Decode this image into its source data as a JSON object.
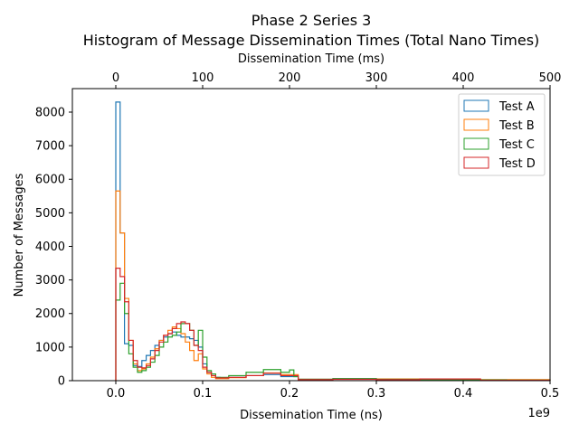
{
  "chart_data": {
    "type": "histogram",
    "title": "Phase 2 Series 3",
    "subtitle": "Histogram of Message Dissemination Times (Total Nano Times)",
    "xlabel": "Dissemination Time (ns)",
    "x_scale_note": "1e9",
    "x2label": "Dissemination Time (ms)",
    "ylabel": "Number of Messages",
    "xlim": [
      -0.05,
      0.5
    ],
    "ylim": [
      0,
      8700
    ],
    "x2lim": [
      -50,
      500
    ],
    "xticks": [
      {
        "value": 0.0,
        "label": "0.0"
      },
      {
        "value": 0.1,
        "label": "0.1"
      },
      {
        "value": 0.2,
        "label": "0.2"
      },
      {
        "value": 0.3,
        "label": "0.3"
      },
      {
        "value": 0.4,
        "label": "0.4"
      },
      {
        "value": 0.5,
        "label": "0.5"
      }
    ],
    "x2ticks": [
      {
        "value": 0,
        "label": "0"
      },
      {
        "value": 100,
        "label": "100"
      },
      {
        "value": 200,
        "label": "200"
      },
      {
        "value": 300,
        "label": "300"
      },
      {
        "value": 400,
        "label": "400"
      },
      {
        "value": 500,
        "label": "500"
      }
    ],
    "yticks": [
      {
        "value": 0,
        "label": "0"
      },
      {
        "value": 1000,
        "label": "1000"
      },
      {
        "value": 2000,
        "label": "2000"
      },
      {
        "value": 3000,
        "label": "3000"
      },
      {
        "value": 4000,
        "label": "4000"
      },
      {
        "value": 5000,
        "label": "5000"
      },
      {
        "value": 6000,
        "label": "6000"
      },
      {
        "value": 7000,
        "label": "7000"
      },
      {
        "value": 8000,
        "label": "8000"
      }
    ],
    "grid": false,
    "legend_position": "top-right",
    "bin_width": 0.005,
    "series": [
      {
        "name": "Test A",
        "color": "#1f77b4",
        "bins": [
          [
            0.0,
            0.005,
            8300
          ],
          [
            0.005,
            0.01,
            4400
          ],
          [
            0.01,
            0.015,
            1100
          ],
          [
            0.015,
            0.02,
            1050
          ],
          [
            0.02,
            0.025,
            450
          ],
          [
            0.025,
            0.03,
            420
          ],
          [
            0.03,
            0.035,
            600
          ],
          [
            0.035,
            0.04,
            750
          ],
          [
            0.04,
            0.045,
            900
          ],
          [
            0.045,
            0.05,
            1050
          ],
          [
            0.05,
            0.055,
            1200
          ],
          [
            0.055,
            0.06,
            1300
          ],
          [
            0.06,
            0.065,
            1400
          ],
          [
            0.065,
            0.07,
            1450
          ],
          [
            0.07,
            0.075,
            1350
          ],
          [
            0.075,
            0.08,
            1300
          ],
          [
            0.08,
            0.085,
            1300
          ],
          [
            0.085,
            0.09,
            1250
          ],
          [
            0.09,
            0.095,
            1200
          ],
          [
            0.095,
            0.1,
            1000
          ],
          [
            0.1,
            0.105,
            500
          ],
          [
            0.105,
            0.11,
            250
          ],
          [
            0.11,
            0.115,
            150
          ],
          [
            0.115,
            0.12,
            100
          ],
          [
            0.12,
            0.13,
            80
          ],
          [
            0.13,
            0.15,
            100
          ],
          [
            0.15,
            0.17,
            150
          ],
          [
            0.17,
            0.19,
            180
          ],
          [
            0.19,
            0.21,
            120
          ],
          [
            0.21,
            0.25,
            40
          ],
          [
            0.25,
            0.3,
            60
          ],
          [
            0.3,
            0.35,
            30
          ],
          [
            0.35,
            0.45,
            20
          ],
          [
            0.45,
            0.5,
            10
          ]
        ]
      },
      {
        "name": "Test B",
        "color": "#ff7f0e",
        "bins": [
          [
            0.0,
            0.005,
            5650
          ],
          [
            0.005,
            0.01,
            4400
          ],
          [
            0.01,
            0.015,
            2450
          ],
          [
            0.015,
            0.02,
            1200
          ],
          [
            0.02,
            0.025,
            500
          ],
          [
            0.025,
            0.03,
            300
          ],
          [
            0.03,
            0.035,
            350
          ],
          [
            0.035,
            0.04,
            500
          ],
          [
            0.04,
            0.045,
            700
          ],
          [
            0.045,
            0.05,
            950
          ],
          [
            0.05,
            0.055,
            1200
          ],
          [
            0.055,
            0.06,
            1350
          ],
          [
            0.06,
            0.065,
            1500
          ],
          [
            0.065,
            0.07,
            1600
          ],
          [
            0.07,
            0.075,
            1550
          ],
          [
            0.075,
            0.08,
            1400
          ],
          [
            0.08,
            0.085,
            1150
          ],
          [
            0.085,
            0.09,
            900
          ],
          [
            0.09,
            0.095,
            600
          ],
          [
            0.095,
            0.1,
            800
          ],
          [
            0.1,
            0.105,
            350
          ],
          [
            0.105,
            0.11,
            200
          ],
          [
            0.11,
            0.115,
            100
          ],
          [
            0.115,
            0.13,
            60
          ],
          [
            0.13,
            0.15,
            90
          ],
          [
            0.15,
            0.17,
            150
          ],
          [
            0.17,
            0.19,
            230
          ],
          [
            0.19,
            0.21,
            180
          ],
          [
            0.21,
            0.25,
            40
          ],
          [
            0.25,
            0.3,
            50
          ],
          [
            0.3,
            0.4,
            50
          ],
          [
            0.4,
            0.5,
            30
          ]
        ]
      },
      {
        "name": "Test C",
        "color": "#2ca02c",
        "bins": [
          [
            0.0,
            0.005,
            2400
          ],
          [
            0.005,
            0.01,
            2900
          ],
          [
            0.01,
            0.015,
            2000
          ],
          [
            0.015,
            0.02,
            800
          ],
          [
            0.02,
            0.025,
            400
          ],
          [
            0.025,
            0.03,
            250
          ],
          [
            0.03,
            0.035,
            300
          ],
          [
            0.035,
            0.04,
            400
          ],
          [
            0.04,
            0.045,
            550
          ],
          [
            0.045,
            0.05,
            750
          ],
          [
            0.05,
            0.055,
            1000
          ],
          [
            0.055,
            0.06,
            1150
          ],
          [
            0.06,
            0.065,
            1300
          ],
          [
            0.065,
            0.07,
            1350
          ],
          [
            0.07,
            0.075,
            1450
          ],
          [
            0.075,
            0.08,
            1700
          ],
          [
            0.08,
            0.085,
            1700
          ],
          [
            0.085,
            0.09,
            1500
          ],
          [
            0.09,
            0.095,
            1050
          ],
          [
            0.095,
            0.1,
            1500
          ],
          [
            0.1,
            0.105,
            700
          ],
          [
            0.105,
            0.11,
            300
          ],
          [
            0.11,
            0.115,
            200
          ],
          [
            0.115,
            0.13,
            100
          ],
          [
            0.13,
            0.15,
            150
          ],
          [
            0.15,
            0.17,
            250
          ],
          [
            0.17,
            0.19,
            330
          ],
          [
            0.19,
            0.2,
            250
          ],
          [
            0.2,
            0.205,
            320
          ],
          [
            0.205,
            0.21,
            120
          ],
          [
            0.21,
            0.25,
            40
          ],
          [
            0.25,
            0.3,
            60
          ],
          [
            0.3,
            0.35,
            40
          ],
          [
            0.35,
            0.45,
            20
          ],
          [
            0.45,
            0.5,
            15
          ]
        ]
      },
      {
        "name": "Test D",
        "color": "#d62728",
        "bins": [
          [
            0.0,
            0.005,
            3350
          ],
          [
            0.005,
            0.01,
            3100
          ],
          [
            0.01,
            0.015,
            2350
          ],
          [
            0.015,
            0.02,
            1200
          ],
          [
            0.02,
            0.025,
            600
          ],
          [
            0.025,
            0.03,
            400
          ],
          [
            0.03,
            0.035,
            380
          ],
          [
            0.035,
            0.04,
            450
          ],
          [
            0.04,
            0.045,
            650
          ],
          [
            0.045,
            0.05,
            900
          ],
          [
            0.05,
            0.055,
            1150
          ],
          [
            0.055,
            0.06,
            1350
          ],
          [
            0.06,
            0.065,
            1400
          ],
          [
            0.065,
            0.07,
            1550
          ],
          [
            0.07,
            0.075,
            1700
          ],
          [
            0.075,
            0.08,
            1750
          ],
          [
            0.08,
            0.085,
            1700
          ],
          [
            0.085,
            0.09,
            1500
          ],
          [
            0.09,
            0.095,
            1050
          ],
          [
            0.095,
            0.1,
            900
          ],
          [
            0.1,
            0.105,
            400
          ],
          [
            0.105,
            0.11,
            250
          ],
          [
            0.11,
            0.115,
            150
          ],
          [
            0.115,
            0.13,
            80
          ],
          [
            0.13,
            0.15,
            100
          ],
          [
            0.15,
            0.17,
            150
          ],
          [
            0.17,
            0.19,
            220
          ],
          [
            0.19,
            0.21,
            150
          ],
          [
            0.21,
            0.25,
            30
          ],
          [
            0.25,
            0.3,
            40
          ],
          [
            0.3,
            0.35,
            30
          ],
          [
            0.35,
            0.42,
            50
          ],
          [
            0.42,
            0.5,
            10
          ]
        ]
      }
    ]
  }
}
